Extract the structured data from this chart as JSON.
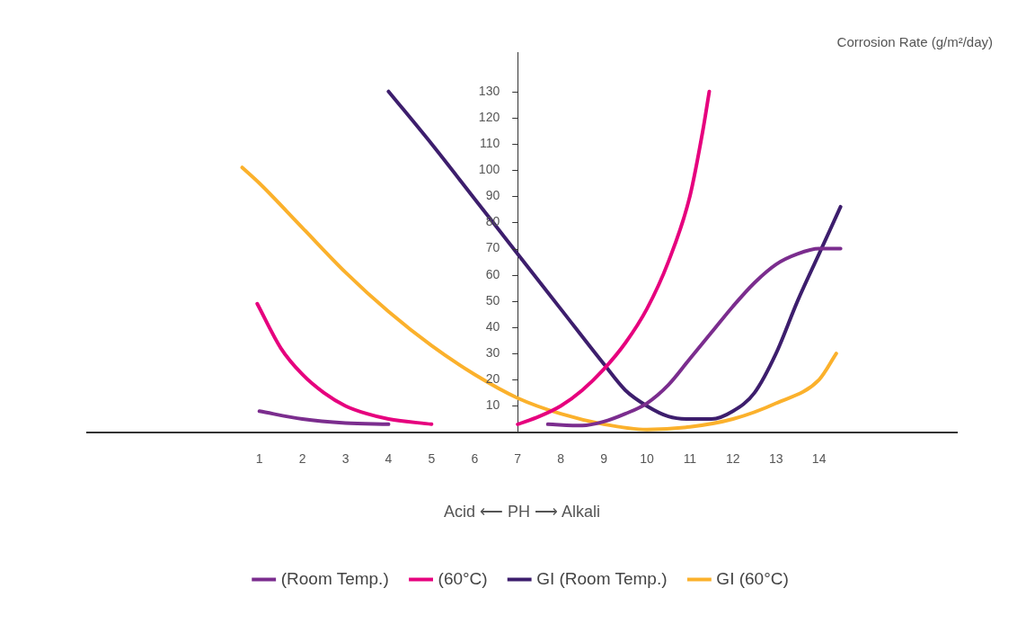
{
  "chart_data": {
    "type": "line",
    "xlabel": "Acid ⟵ PH ⟶ Alkali",
    "ylabel": "Corrosion Rate (g/m²/day)",
    "xlim": [
      -3,
      17.2
    ],
    "ylim": [
      0,
      145
    ],
    "xticks": [
      1,
      2,
      3,
      4,
      5,
      6,
      7,
      8,
      9,
      10,
      11,
      12,
      13,
      14
    ],
    "yticks": [
      {
        "value": 0,
        "label": null
      },
      10,
      20,
      30,
      40,
      50,
      60,
      70,
      80,
      90,
      100,
      110,
      120,
      130
    ],
    "legend": "bottom",
    "marker": "none",
    "line_style": "solid",
    "series": [
      {
        "name": "(Room Temp.)",
        "color": "#7b2d8e",
        "x": [
          1,
          2,
          3,
          4,
          6,
          7.7,
          8.5,
          9,
          9.5,
          10,
          10.5,
          11,
          11.5,
          12,
          12.5,
          13,
          13.5,
          14,
          14.5
        ],
        "values": [
          8,
          5,
          3.5,
          3,
          null,
          3,
          2.5,
          4,
          7,
          11,
          18,
          28,
          38,
          48,
          57,
          64,
          68,
          70,
          70
        ]
      },
      {
        "name": "(60°C)",
        "color": "#e6007e",
        "x": [
          0.95,
          1.5,
          2,
          2.5,
          3,
          3.5,
          4,
          5,
          6,
          7,
          7.5,
          8,
          8.5,
          9,
          9.5,
          10,
          10.5,
          11,
          11.3,
          11.45
        ],
        "values": [
          49,
          32,
          22,
          15,
          10,
          7,
          5,
          3,
          null,
          3,
          6,
          10,
          16,
          24,
          34,
          47,
          65,
          90,
          115,
          130
        ]
      },
      {
        "name": "GI (Room Temp.)",
        "color": "#3d1e6d",
        "x": [
          4,
          5,
          6,
          7,
          8,
          9,
          9.5,
          10,
          10.5,
          11,
          11.5,
          12,
          12.5,
          13,
          13.5,
          14,
          14.5
        ],
        "values": [
          130,
          110,
          89,
          68,
          47,
          26,
          16,
          10,
          6,
          5,
          5,
          8,
          15,
          30,
          50,
          68,
          86
        ]
      },
      {
        "name": "GI (60°C)",
        "color": "#fbb12c",
        "x": [
          0.6,
          1,
          2,
          3,
          4,
          5,
          6,
          7,
          8,
          9,
          10,
          11,
          12,
          13,
          14,
          14.4
        ],
        "values": [
          101,
          95,
          78,
          61,
          46,
          33,
          22,
          13,
          7,
          3,
          1,
          2,
          5,
          11,
          20,
          30
        ]
      }
    ]
  }
}
